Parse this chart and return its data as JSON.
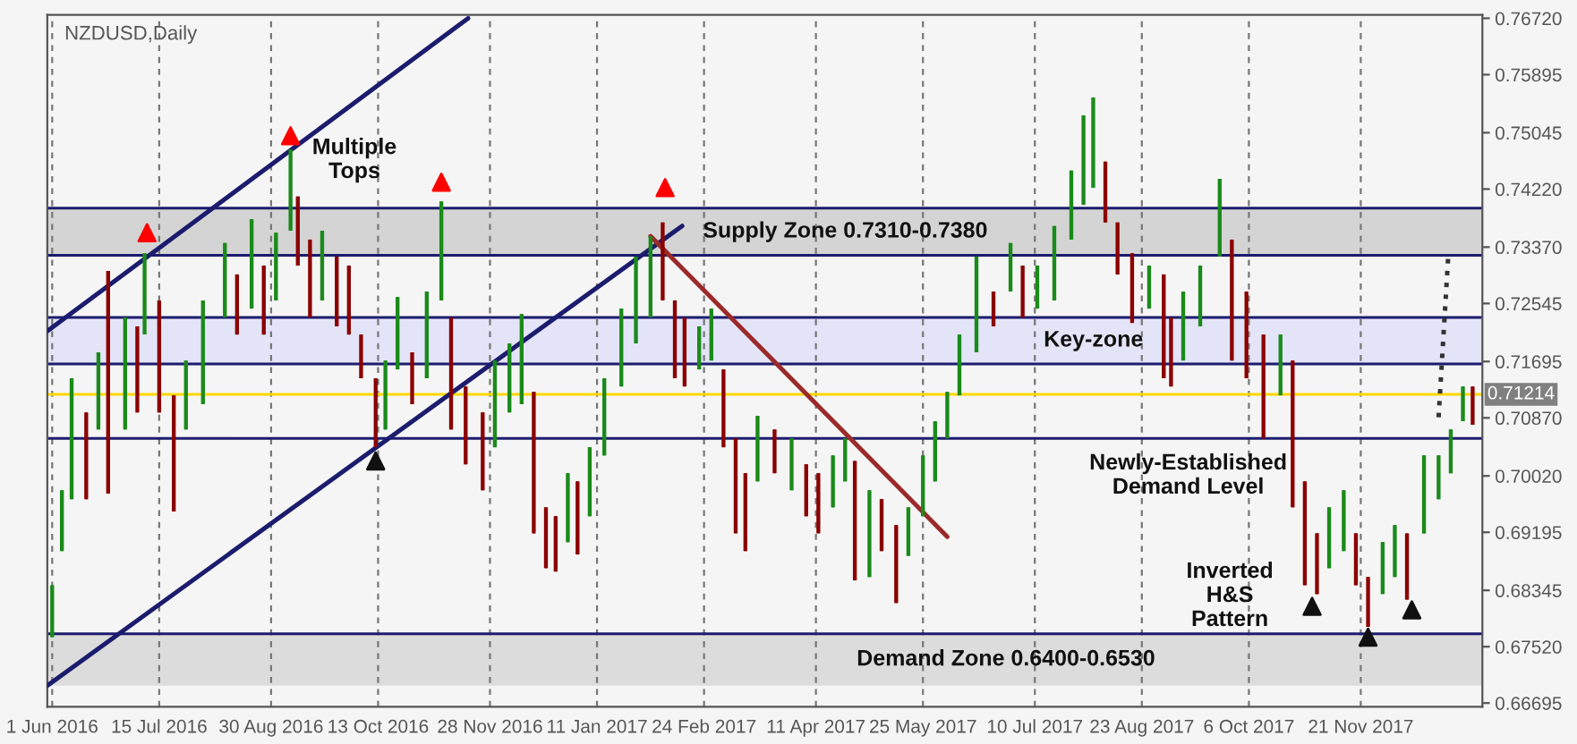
{
  "chart_data": {
    "type": "candlestick",
    "title": "NZDUSD,Daily",
    "x": [
      "2016-06-01",
      "2016-06-05",
      "2016-06-09",
      "2016-06-15",
      "2016-06-20",
      "2016-06-24",
      "2016-07-01",
      "2016-07-06",
      "2016-07-09",
      "2016-07-15",
      "2016-07-21",
      "2016-07-26",
      "2016-08-02",
      "2016-08-11",
      "2016-08-16",
      "2016-08-22",
      "2016-08-27",
      "2016-09-01",
      "2016-09-07",
      "2016-09-10",
      "2016-09-15",
      "2016-09-20",
      "2016-09-26",
      "2016-10-01",
      "2016-10-06",
      "2016-10-12",
      "2016-10-16",
      "2016-10-21",
      "2016-10-27",
      "2016-11-02",
      "2016-11-08",
      "2016-11-12",
      "2016-11-18",
      "2016-11-25",
      "2016-11-30",
      "2016-12-06",
      "2016-12-11",
      "2016-12-16",
      "2016-12-21",
      "2016-12-25",
      "2016-12-30",
      "2017-01-03",
      "2017-01-08",
      "2017-01-14",
      "2017-01-21",
      "2017-01-27",
      "2017-02-02",
      "2017-02-07",
      "2017-02-12",
      "2017-02-16",
      "2017-02-22",
      "2017-02-27",
      "2017-03-04",
      "2017-03-09",
      "2017-03-13",
      "2017-03-18",
      "2017-03-25",
      "2017-04-01",
      "2017-04-07",
      "2017-04-12",
      "2017-04-18",
      "2017-04-23",
      "2017-04-27",
      "2017-05-03",
      "2017-05-08",
      "2017-05-14",
      "2017-05-19",
      "2017-05-25",
      "2017-05-30",
      "2017-06-04",
      "2017-06-09",
      "2017-06-16",
      "2017-06-23",
      "2017-06-30",
      "2017-07-05",
      "2017-07-11",
      "2017-07-18",
      "2017-07-25",
      "2017-07-30",
      "2017-08-03",
      "2017-08-08",
      "2017-08-13",
      "2017-08-19",
      "2017-08-26",
      "2017-09-01",
      "2017-09-04",
      "2017-09-09",
      "2017-09-16",
      "2017-09-24",
      "2017-09-29",
      "2017-10-05",
      "2017-10-12",
      "2017-10-19",
      "2017-10-24",
      "2017-10-29",
      "2017-11-03",
      "2017-11-08",
      "2017-11-14",
      "2017-11-19",
      "2017-11-24",
      "2017-11-30",
      "2017-12-05",
      "2017-12-10",
      "2017-12-17",
      "2017-12-23",
      "2017-12-28",
      "2018-01-02",
      "2018-01-06"
    ],
    "ohlc": [
      [
        0.6766,
        0.6842,
        0.6766,
        0.6842
      ],
      [
        0.6892,
        0.6981,
        0.6892,
        0.6981
      ],
      [
        0.6968,
        0.7145,
        0.6968,
        0.7145
      ],
      [
        0.7095,
        0.7095,
        0.6968,
        0.6968
      ],
      [
        0.707,
        0.7183,
        0.707,
        0.7183
      ],
      [
        0.7302,
        0.7302,
        0.6976,
        0.6976
      ],
      [
        0.707,
        0.7234,
        0.707,
        0.7234
      ],
      [
        0.7221,
        0.7221,
        0.7095,
        0.7095
      ],
      [
        0.7209,
        0.7328,
        0.7209,
        0.7328
      ],
      [
        0.7259,
        0.7259,
        0.7095,
        0.7095
      ],
      [
        0.712,
        0.712,
        0.695,
        0.695
      ],
      [
        0.707,
        0.7171,
        0.707,
        0.7171
      ],
      [
        0.7107,
        0.7259,
        0.7107,
        0.7259
      ],
      [
        0.7234,
        0.7343,
        0.7234,
        0.7343
      ],
      [
        0.7297,
        0.7297,
        0.7209,
        0.7209
      ],
      [
        0.7247,
        0.7378,
        0.7247,
        0.7378
      ],
      [
        0.731,
        0.731,
        0.7209,
        0.7209
      ],
      [
        0.7259,
        0.7358,
        0.7259,
        0.7358
      ],
      [
        0.7361,
        0.748,
        0.7361,
        0.748
      ],
      [
        0.7411,
        0.7411,
        0.731,
        0.731
      ],
      [
        0.7348,
        0.7348,
        0.7234,
        0.7234
      ],
      [
        0.7259,
        0.7361,
        0.7259,
        0.7361
      ],
      [
        0.7323,
        0.7323,
        0.7221,
        0.7221
      ],
      [
        0.731,
        0.731,
        0.7209,
        0.7209
      ],
      [
        0.7209,
        0.7209,
        0.7145,
        0.7145
      ],
      [
        0.7145,
        0.7145,
        0.7044,
        0.7044
      ],
      [
        0.707,
        0.7171,
        0.707,
        0.7171
      ],
      [
        0.7158,
        0.7264,
        0.7158,
        0.7264
      ],
      [
        0.7183,
        0.7183,
        0.7107,
        0.7107
      ],
      [
        0.7145,
        0.7272,
        0.7145,
        0.7272
      ],
      [
        0.7259,
        0.7404,
        0.7259,
        0.7404
      ],
      [
        0.7234,
        0.7234,
        0.707,
        0.707
      ],
      [
        0.7133,
        0.7133,
        0.7019,
        0.7019
      ],
      [
        0.7095,
        0.7095,
        0.6981,
        0.6981
      ],
      [
        0.7044,
        0.7171,
        0.7044,
        0.7171
      ],
      [
        0.7095,
        0.7196,
        0.7095,
        0.7196
      ],
      [
        0.7107,
        0.7239,
        0.7107,
        0.7239
      ],
      [
        0.7125,
        0.7125,
        0.6918,
        0.6918
      ],
      [
        0.6956,
        0.6956,
        0.6867,
        0.6867
      ],
      [
        0.6943,
        0.6943,
        0.6862,
        0.6862
      ],
      [
        0.6905,
        0.7006,
        0.6905,
        0.7006
      ],
      [
        0.6994,
        0.6994,
        0.6887,
        0.6887
      ],
      [
        0.6943,
        0.7044,
        0.6943,
        0.7044
      ],
      [
        0.7032,
        0.7145,
        0.7032,
        0.7145
      ],
      [
        0.7133,
        0.7247,
        0.7133,
        0.7247
      ],
      [
        0.7196,
        0.7323,
        0.7196,
        0.7323
      ],
      [
        0.7234,
        0.7353,
        0.7234,
        0.7353
      ],
      [
        0.7373,
        0.7373,
        0.7259,
        0.7259
      ],
      [
        0.7259,
        0.7259,
        0.7145,
        0.7145
      ],
      [
        0.7234,
        0.7234,
        0.7133,
        0.7133
      ],
      [
        0.7158,
        0.7221,
        0.7158,
        0.7221
      ],
      [
        0.7171,
        0.7247,
        0.7171,
        0.7247
      ],
      [
        0.7158,
        0.7158,
        0.7044,
        0.7044
      ],
      [
        0.7057,
        0.7057,
        0.6918,
        0.6918
      ],
      [
        0.7006,
        0.7006,
        0.6892,
        0.6892
      ],
      [
        0.6994,
        0.709,
        0.6994,
        0.709
      ],
      [
        0.707,
        0.707,
        0.7006,
        0.7006
      ],
      [
        0.6981,
        0.7057,
        0.6981,
        0.7057
      ],
      [
        0.7019,
        0.7019,
        0.6943,
        0.6943
      ],
      [
        0.7006,
        0.7006,
        0.6918,
        0.6918
      ],
      [
        0.6956,
        0.7032,
        0.6956,
        0.7032
      ],
      [
        0.6994,
        0.7057,
        0.6994,
        0.7057
      ],
      [
        0.7024,
        0.7024,
        0.6849,
        0.6849
      ],
      [
        0.6854,
        0.6981,
        0.6854,
        0.6981
      ],
      [
        0.6968,
        0.6968,
        0.6892,
        0.6892
      ],
      [
        0.693,
        0.693,
        0.6816,
        0.6816
      ],
      [
        0.6885,
        0.6956,
        0.6885,
        0.6956
      ],
      [
        0.6943,
        0.7032,
        0.6943,
        0.7032
      ],
      [
        0.6994,
        0.7082,
        0.6994,
        0.7082
      ],
      [
        0.7057,
        0.7125,
        0.7057,
        0.7125
      ],
      [
        0.712,
        0.7209,
        0.712,
        0.7209
      ],
      [
        0.7183,
        0.7323,
        0.7183,
        0.7323
      ],
      [
        0.7272,
        0.7272,
        0.7221,
        0.7221
      ],
      [
        0.7272,
        0.7343,
        0.7272,
        0.7343
      ],
      [
        0.731,
        0.731,
        0.7234,
        0.7234
      ],
      [
        0.7247,
        0.731,
        0.7247,
        0.731
      ],
      [
        0.7259,
        0.7368,
        0.7259,
        0.7368
      ],
      [
        0.7348,
        0.7449,
        0.7348,
        0.7449
      ],
      [
        0.7399,
        0.753,
        0.7399,
        0.753
      ],
      [
        0.7424,
        0.7556,
        0.7424,
        0.7556
      ],
      [
        0.7462,
        0.7462,
        0.7373,
        0.7373
      ],
      [
        0.7373,
        0.7373,
        0.7297,
        0.7297
      ],
      [
        0.7328,
        0.7328,
        0.7226,
        0.7226
      ],
      [
        0.7247,
        0.731,
        0.7247,
        0.731
      ],
      [
        0.7297,
        0.7297,
        0.7145,
        0.7145
      ],
      [
        0.7234,
        0.7234,
        0.7133,
        0.7133
      ],
      [
        0.7171,
        0.7272,
        0.7171,
        0.7272
      ],
      [
        0.7221,
        0.731,
        0.7221,
        0.731
      ],
      [
        0.7323,
        0.7437,
        0.7323,
        0.7437
      ],
      [
        0.7348,
        0.7348,
        0.7171,
        0.7171
      ],
      [
        0.7272,
        0.7272,
        0.7145,
        0.7145
      ],
      [
        0.7209,
        0.7209,
        0.7057,
        0.7057
      ],
      [
        0.712,
        0.7209,
        0.712,
        0.7209
      ],
      [
        0.7171,
        0.7171,
        0.6956,
        0.6956
      ],
      [
        0.6994,
        0.6994,
        0.6842,
        0.6842
      ],
      [
        0.6918,
        0.6918,
        0.6829,
        0.6829
      ],
      [
        0.6867,
        0.6956,
        0.6867,
        0.6956
      ],
      [
        0.6892,
        0.6981,
        0.6892,
        0.6981
      ],
      [
        0.6918,
        0.6918,
        0.6842,
        0.6842
      ],
      [
        0.6854,
        0.6854,
        0.6781,
        0.6781
      ],
      [
        0.6829,
        0.6905,
        0.6829,
        0.6905
      ],
      [
        0.6854,
        0.693,
        0.6854,
        0.693
      ],
      [
        0.6918,
        0.6918,
        0.6821,
        0.6821
      ],
      [
        0.6918,
        0.7032,
        0.6918,
        0.7032
      ],
      [
        0.6968,
        0.7032,
        0.6968,
        0.7032
      ],
      [
        0.7006,
        0.707,
        0.7006,
        0.707
      ],
      [
        0.7082,
        0.7133,
        0.7082,
        0.7133
      ],
      [
        0.7133,
        0.7133,
        0.7077,
        0.7077
      ]
    ],
    "series": [
      {
        "type": "line",
        "color": "#1c1c6e",
        "x": [
          "2016-05-30",
          "2016-11-19"
        ],
        "values": [
          0.7214,
          0.7672
        ]
      },
      {
        "type": "line",
        "color": "#1c1c6e",
        "x": [
          "2016-05-30",
          "2017-02-15"
        ],
        "values": [
          0.6695,
          0.7368
        ]
      },
      {
        "type": "line",
        "color": "#9b2a2a",
        "x": [
          "2017-02-02",
          "2017-06-04"
        ],
        "values": [
          0.7353,
          0.6913
        ]
      },
      {
        "type": "line",
        "color": "#333333",
        "line_style": "dotted",
        "x": [
          "2017-12-23",
          "2017-12-27"
        ],
        "values": [
          0.7088,
          0.7326
        ]
      },
      {
        "type": "scatter",
        "color": "#ff0000",
        "marker": "triangle",
        "x": [
          "2016-07-10",
          "2016-09-07",
          "2016-11-08",
          "2017-02-08"
        ],
        "values": [
          0.7358,
          0.75,
          0.7432,
          0.7424
        ]
      },
      {
        "type": "scatter",
        "color": "#111111",
        "marker": "triangle",
        "x": [
          "2016-10-12",
          "2017-11-01",
          "2017-11-24",
          "2017-12-12"
        ],
        "values": [
          0.7024,
          0.6811,
          0.6766,
          0.6806
        ]
      }
    ],
    "ylim": [
      0.6664,
      0.7677
    ],
    "yticks": [
      {
        "value": 0.7672,
        "label": "0.76720"
      },
      {
        "value": 0.75895,
        "label": "0.75895"
      },
      {
        "value": 0.75045,
        "label": "0.75045"
      },
      {
        "value": 0.7422,
        "label": "0.74220"
      },
      {
        "value": 0.7337,
        "label": "0.73370"
      },
      {
        "value": 0.72545,
        "label": "0.72545"
      },
      {
        "value": 0.71695,
        "label": "0.71695"
      },
      {
        "value": 0.7087,
        "label": "0.70870"
      },
      {
        "value": 0.7002,
        "label": "0.70020"
      },
      {
        "value": 0.69195,
        "label": "0.69195"
      },
      {
        "value": 0.68345,
        "label": "0.68345"
      },
      {
        "value": 0.6752,
        "label": "0.67520"
      },
      {
        "value": 0.66695,
        "label": "0.66695"
      }
    ],
    "xlim": [
      "2016-05-30",
      "2018-01-10"
    ],
    "xticks": [
      {
        "value": "2016-06-01",
        "label": "1 Jun 2016"
      },
      {
        "value": "2016-07-15",
        "label": "15 Jul 2016"
      },
      {
        "value": "2016-08-30",
        "label": "30 Aug 2016"
      },
      {
        "value": "2016-10-13",
        "label": "13 Oct 2016"
      },
      {
        "value": "2016-11-28",
        "label": "28 Nov 2016"
      },
      {
        "value": "2017-01-11",
        "label": "11 Jan 2017"
      },
      {
        "value": "2017-02-24",
        "label": "24 Feb 2017"
      },
      {
        "value": "2017-04-11",
        "label": "11 Apr 2017"
      },
      {
        "value": "2017-05-25",
        "label": "25 May 2017"
      },
      {
        "value": "2017-07-10",
        "label": "10 Jul 2017"
      },
      {
        "value": "2017-08-23",
        "label": "23 Aug 2017"
      },
      {
        "value": "2017-10-06",
        "label": "6 Oct 2017"
      },
      {
        "value": "2017-11-21",
        "label": "21 Nov 2017"
      }
    ],
    "bands": [
      {
        "axis": "y",
        "from": 0.7325,
        "to": 0.7394,
        "color": "#d4d4d4",
        "label": "Supply Zone 0.7310-0.7380"
      },
      {
        "axis": "y",
        "from": 0.7166,
        "to": 0.7234,
        "color": "#e4e4f8",
        "label": "Key-zone"
      },
      {
        "axis": "y",
        "from": 0.6695,
        "to": 0.6771,
        "color": "#dcdcdc",
        "label": "Demand Zone 0.6400-0.6530"
      }
    ],
    "ref_lines": [
      {
        "axis": "y",
        "value": 0.7394,
        "color": "#1c1c6e"
      },
      {
        "axis": "y",
        "value": 0.7325,
        "color": "#1c1c6e"
      },
      {
        "axis": "y",
        "value": 0.7234,
        "color": "#1c1c6e"
      },
      {
        "axis": "y",
        "value": 0.7166,
        "color": "#1c1c6e"
      },
      {
        "axis": "y",
        "value": 0.7057,
        "color": "#1c1c6e",
        "label": "Newly-Established\nDemand Level"
      },
      {
        "axis": "y",
        "value": 0.6771,
        "color": "#1c1c6e"
      },
      {
        "axis": "y",
        "value": 0.71214,
        "label": "0.71214",
        "color": "#ffd700"
      }
    ],
    "annotations": [
      "Multiple\nTops",
      "Inverted\nH&S\nPattern"
    ],
    "grid": "x",
    "legend": false
  }
}
